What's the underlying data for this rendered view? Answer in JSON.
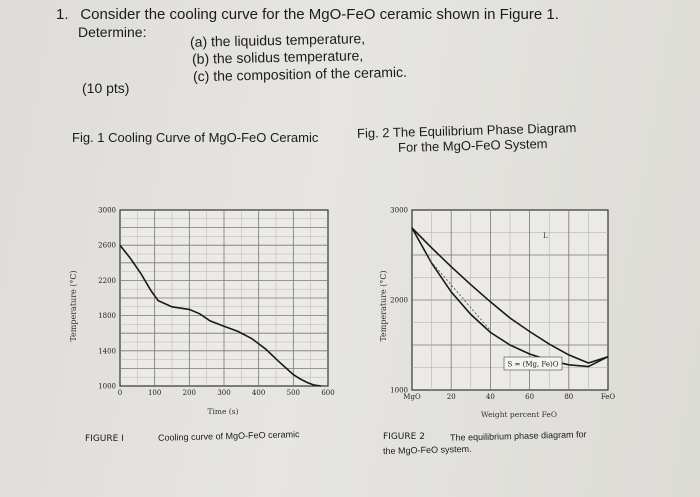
{
  "question": {
    "number": "1.",
    "line1": "Consider the cooling curve for the MgO-FeO ceramic shown in Figure 1.",
    "determine": "Determine:",
    "parts": [
      "(a) the liquidus temperature,",
      "(b) the solidus temperature,",
      "(c) the composition of the ceramic."
    ],
    "points": "(10 pts)"
  },
  "fig1": {
    "caption": "Fig. 1 Cooling Curve of MgO-FeO Ceramic",
    "footer_label": "FIGURE  I",
    "footer_text": "Cooling curve of MgO-FeO ceramic"
  },
  "fig2": {
    "caption_line1": "Fig. 2 The Equilibrium Phase Diagram",
    "caption_line2": "For the MgO-FeO System",
    "footer_label": "FIGURE  2",
    "footer_text1": "The equilibrium phase diagram for",
    "footer_text2": "the MgO-FeO system."
  },
  "chart_data": [
    {
      "type": "line",
      "title": "",
      "xlabel": "Time (s)",
      "ylabel": "Temperature (°C)",
      "xlim": [
        0,
        600
      ],
      "ylim": [
        1000,
        3000
      ],
      "x_ticks": [
        "0",
        "100",
        "200",
        "300",
        "400",
        "500",
        "600"
      ],
      "y_ticks": [
        "1000",
        "1400",
        "1800",
        "2200",
        "2600",
        "3000"
      ],
      "grid": true,
      "series": [
        {
          "x": [
            0,
            30,
            60,
            90,
            110,
            150,
            200,
            230,
            260,
            300,
            340,
            380,
            420,
            460,
            480,
            500,
            520,
            540,
            560,
            580
          ],
          "y": [
            2600,
            2450,
            2280,
            2080,
            1970,
            1900,
            1870,
            1820,
            1740,
            1680,
            1620,
            1540,
            1420,
            1270,
            1200,
            1130,
            1080,
            1040,
            1010,
            1000
          ]
        }
      ]
    },
    {
      "type": "line",
      "title": "",
      "xlabel": "Weight percent FeO",
      "ylabel": "Temperature (°C)",
      "xlim": [
        0,
        100
      ],
      "ylim": [
        1000,
        3000
      ],
      "x_ticks": [
        "MgO",
        "20",
        "40",
        "60",
        "80",
        "FeO"
      ],
      "y_ticks": [
        "1000",
        "2000",
        "3000"
      ],
      "grid": true,
      "annotations": [
        "L",
        "S = (Mg, Fe)O"
      ],
      "series": [
        {
          "x": [
            0,
            10,
            20,
            30,
            40,
            50,
            60,
            70,
            80,
            90,
            100
          ],
          "y": [
            2800,
            2580,
            2370,
            2170,
            1980,
            1800,
            1650,
            1510,
            1390,
            1300,
            1370
          ]
        },
        {
          "x": [
            0,
            10,
            20,
            30,
            40,
            50,
            60,
            70,
            80,
            90,
            100
          ],
          "y": [
            2800,
            2410,
            2090,
            1840,
            1640,
            1500,
            1400,
            1330,
            1280,
            1260,
            1370
          ]
        }
      ]
    }
  ]
}
